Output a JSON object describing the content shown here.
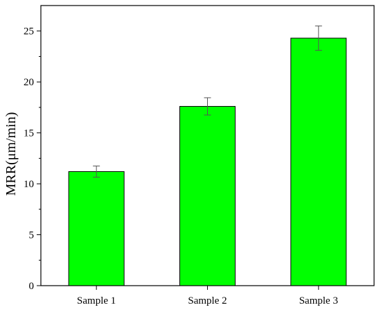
{
  "chart_data": {
    "type": "bar",
    "title": "",
    "xlabel": "",
    "ylabel": "MRR(μm/min)",
    "categories": [
      "Sample 1",
      "Sample 2",
      "Sample 3"
    ],
    "values": [
      11.2,
      17.6,
      24.3
    ],
    "error": [
      0.55,
      0.85,
      1.2
    ],
    "ylim": [
      0,
      27.5
    ],
    "yticks": [
      0,
      5,
      10,
      15,
      20,
      25
    ],
    "ytick_labels": [
      "0",
      "5",
      "10",
      "15",
      "20",
      "25"
    ],
    "grid": false,
    "legend": "none",
    "bar_color": "#00ff00",
    "edge_color": "#000000"
  }
}
